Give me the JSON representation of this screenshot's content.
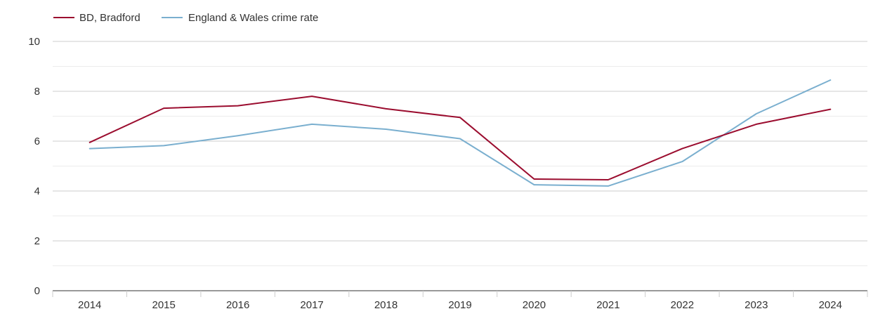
{
  "chart_data": {
    "type": "line",
    "title": "",
    "xlabel": "",
    "ylabel": "",
    "categories": [
      "2014",
      "2015",
      "2016",
      "2017",
      "2018",
      "2019",
      "2020",
      "2021",
      "2022",
      "2023",
      "2024"
    ],
    "ylim": [
      0,
      10
    ],
    "y_ticks": [
      "0",
      "2",
      "4",
      "6",
      "8",
      "10"
    ],
    "grid": true,
    "legend_position": "top-left",
    "series": [
      {
        "name": "BD, Bradford",
        "color": "#9b0d2f",
        "values": [
          5.95,
          7.32,
          7.42,
          7.8,
          7.3,
          6.95,
          4.48,
          4.45,
          5.7,
          6.68,
          7.28
        ]
      },
      {
        "name": "England & Wales crime rate",
        "color": "#7aafcf",
        "values": [
          5.7,
          5.82,
          6.22,
          6.68,
          6.48,
          6.1,
          4.25,
          4.2,
          5.18,
          7.1,
          8.45
        ]
      }
    ]
  }
}
